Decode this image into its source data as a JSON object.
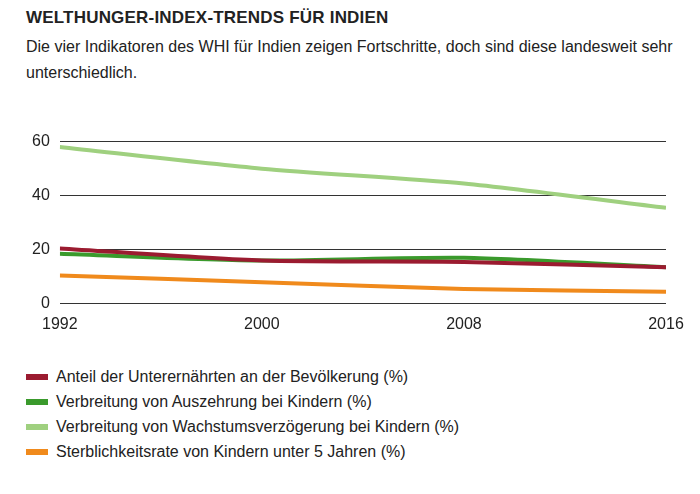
{
  "chart_data": {
    "type": "line",
    "title": "WELTHUNGER-INDEX-TRENDS FÜR INDIEN",
    "subtitle": "Die vier Indikatoren des WHI für Indien zeigen Fortschritte, doch sind diese landesweit sehr unterschiedlich.",
    "x": [
      1992,
      2000,
      2008,
      2016
    ],
    "series": [
      {
        "name": "Anteil der Unterernährten an der Bevölkerung (%)",
        "color": "#9b1b30",
        "values": [
          20.5,
          16.0,
          15.5,
          13.5
        ]
      },
      {
        "name": "Verbreitung von Auszehrung bei Kindern (%)",
        "color": "#3a9a2c",
        "values": [
          18.5,
          16.0,
          17.0,
          13.5
        ]
      },
      {
        "name": "Verbreitung von Wachstumsverzögerung bei Kindern (%)",
        "color": "#9fd07f",
        "values": [
          58.0,
          50.0,
          44.5,
          35.5
        ]
      },
      {
        "name": "Sterblichkeitsrate von Kindern unter 5 Jahren (%)",
        "color": "#f08a1c",
        "values": [
          10.5,
          8.0,
          5.5,
          4.5
        ]
      }
    ],
    "xlim": [
      1992,
      2016
    ],
    "xticks": [
      1992,
      2000,
      2008,
      2016
    ],
    "ylim": [
      0,
      60
    ],
    "yticks": [
      0,
      20,
      40,
      60
    ],
    "grid": true,
    "legend": "bottom"
  }
}
